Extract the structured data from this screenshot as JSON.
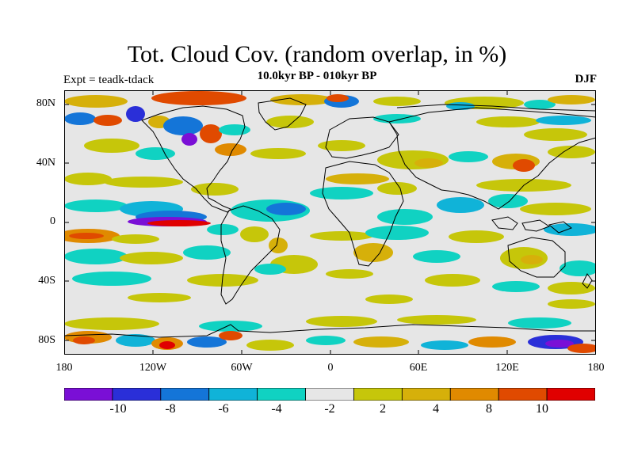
{
  "title": "Tot. Cloud Cov. (random overlap, in %)",
  "subtitle": "10.0kyr BP - 010kyr BP",
  "experiment": "Expt = teadk-tdack",
  "season": "DJF",
  "map": {
    "projection": "cylindrical equidistant",
    "lon_range": [
      -180,
      180
    ],
    "lat_range": [
      -90,
      90
    ],
    "lat_ticks": [
      "80N",
      "40N",
      "0",
      "40S",
      "80S"
    ],
    "lon_ticks": [
      "180",
      "120W",
      "60W",
      "0",
      "60E",
      "120E",
      "180"
    ],
    "background_color": "#e6e6e6",
    "coastline_color": "#000000"
  },
  "colorbar": {
    "colors": [
      "#7a0fd6",
      "#2a2fd8",
      "#1475d8",
      "#10b3d8",
      "#10d2c2",
      "#e6e6e6",
      "#c6c60a",
      "#d6b00a",
      "#e08a00",
      "#e04a00",
      "#e00000"
    ],
    "labels": [
      "-10",
      "-8",
      "-6",
      "-4",
      "-2",
      "2",
      "4",
      "8",
      "10"
    ]
  }
}
